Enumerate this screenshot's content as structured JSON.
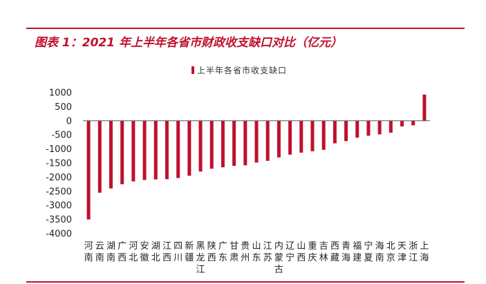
{
  "header": {
    "title": "图表 1：2021 年上半年各省市财政收支缺口对比（亿元）"
  },
  "chart_data": {
    "type": "bar",
    "title": "图表 1：2021 年上半年各省市财政收支缺口对比（亿元）",
    "xlabel": "",
    "ylabel": "",
    "ylim": [
      -4000,
      1000
    ],
    "yticks": [
      1000,
      500,
      0,
      -500,
      -1000,
      -1500,
      -2000,
      -2500,
      -3000,
      -3500,
      -4000
    ],
    "grid": false,
    "legend_position": "top-center",
    "color": "#c0102e",
    "categories": [
      "河南",
      "云南",
      "湖南",
      "广西",
      "河北",
      "安徽",
      "湖北",
      "江西",
      "四川",
      "新疆",
      "黑龙江",
      "陕西",
      "广东",
      "甘肃",
      "贵州",
      "山东",
      "江苏",
      "内蒙古",
      "辽宁",
      "山西",
      "重庆",
      "吉林",
      "西藏",
      "青海",
      "福建",
      "宁夏",
      "海南",
      "北京",
      "天津",
      "浙江",
      "上海"
    ],
    "series": [
      {
        "name": "上半年各省市收支缺口",
        "values": [
          -3500,
          -2550,
          -2400,
          -2250,
          -2150,
          -2100,
          -2080,
          -2070,
          -2030,
          -1950,
          -1800,
          -1700,
          -1650,
          -1600,
          -1580,
          -1480,
          -1420,
          -1300,
          -1200,
          -1130,
          -1080,
          -1030,
          -800,
          -720,
          -600,
          -530,
          -480,
          -420,
          -200,
          -160,
          930
        ]
      }
    ]
  }
}
